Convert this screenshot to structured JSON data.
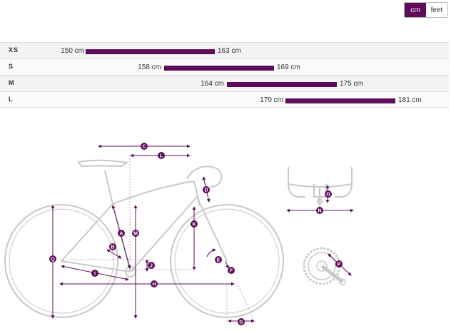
{
  "units": {
    "cm": "cm",
    "feet": "feet",
    "selected": "cm"
  },
  "sizes": [
    {
      "size": "XS",
      "min": "150 cm",
      "max": "163 cm"
    },
    {
      "size": "S",
      "min": "158 cm",
      "max": "169 cm"
    },
    {
      "size": "M",
      "min": "164 cm",
      "max": "175 cm"
    },
    {
      "size": "L",
      "min": "170 cm",
      "max": "181 cm"
    }
  ],
  "colors": {
    "accent": "#5e0b5a",
    "frame_outline": "#c8c8c8"
  },
  "geometry_labels": [
    "A",
    "B",
    "C",
    "D",
    "E",
    "F",
    "G",
    "H",
    "I",
    "J",
    "K",
    "L",
    "M",
    "N",
    "O",
    "P",
    "Q"
  ]
}
